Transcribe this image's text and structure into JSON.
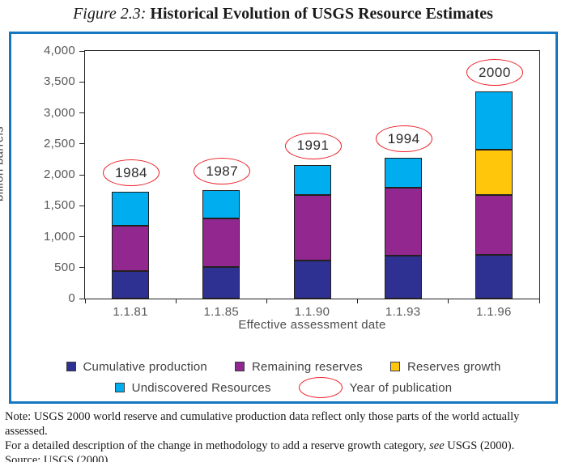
{
  "title": {
    "figure_label": "Figure 2.3:",
    "text": "Historical Evolution of USGS Resource Estimates"
  },
  "chart_data": {
    "type": "bar",
    "stacked": true,
    "title": "Historical Evolution of USGS Resource Estimates",
    "categories": [
      "1.1.81",
      "1.1.85",
      "1.1.90",
      "1.1.93",
      "1.1.96"
    ],
    "series": [
      {
        "name": "Cumulative production",
        "color": "#2e3192",
        "values": [
          445,
          510,
          610,
          690,
          700
        ]
      },
      {
        "name": "Remaining reserves",
        "color": "#92278f",
        "values": [
          725,
          790,
          1060,
          1100,
          970
        ]
      },
      {
        "name": "Reserves growth",
        "color": "#ffc60b",
        "values": [
          0,
          0,
          0,
          0,
          740
        ]
      },
      {
        "name": "Undiscovered Resources",
        "color": "#00aeef",
        "values": [
          550,
          450,
          490,
          480,
          930
        ]
      }
    ],
    "annotations": {
      "label": "Year of publication",
      "values": [
        "1984",
        "1987",
        "1991",
        "1994",
        "2000"
      ],
      "color": "#ed1c24"
    },
    "xlabel": "Effective assessment date",
    "ylabel": "billion barrels",
    "ylim": [
      0,
      4000
    ],
    "ytick_step": 500,
    "yticks": [
      "0",
      "500",
      "1,000",
      "1,500",
      "2,000",
      "2,500",
      "3,000",
      "3,500",
      "4,000"
    ],
    "grid": false,
    "legend_position": "bottom"
  },
  "note": {
    "line1": "Note: USGS 2000 world reserve and cumulative production data reflect only those parts of the world actually assessed.",
    "line2_pre": "For a detailed description of the change in methodology to add a reserve growth category, ",
    "line2_em": "see",
    "line2_post": " USGS (2000).",
    "line3": "Source: USGS (2000)."
  },
  "colors": {
    "frame_border": "#1577c0",
    "axis": "#231f20",
    "tick_text": "#58595b",
    "ellipse": "#ed1c24"
  }
}
